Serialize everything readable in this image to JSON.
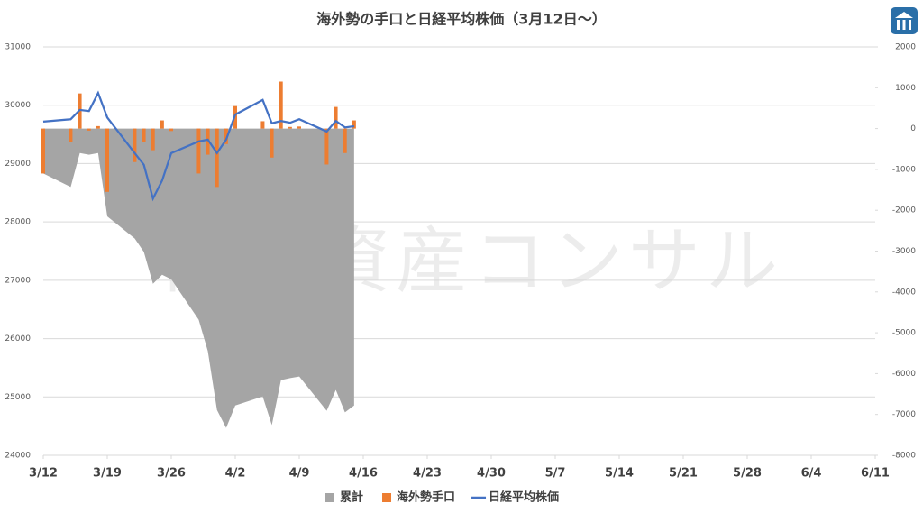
{
  "chart_data": {
    "type": "combo",
    "title": "海外勢の手口と日経平均株価（3月12日～）",
    "watermark": "高田資産コンサル",
    "x": [
      "3/12",
      "3/15",
      "3/16",
      "3/17",
      "3/18",
      "3/19",
      "3/22",
      "3/23",
      "3/24",
      "3/25",
      "3/26",
      "3/29",
      "3/30",
      "3/31",
      "4/1",
      "4/2",
      "4/5",
      "4/6",
      "4/7",
      "4/8",
      "4/9",
      "4/12",
      "4/13",
      "4/14",
      "4/15"
    ],
    "xlim": [
      "3/12",
      "6/11"
    ],
    "xticks": [
      "3/12",
      "3/19",
      "3/26",
      "4/2",
      "4/9",
      "4/16",
      "4/23",
      "4/30",
      "5/7",
      "5/14",
      "5/21",
      "5/28",
      "6/4",
      "6/11"
    ],
    "ylim": [
      24000,
      31000
    ],
    "yticks": [
      24000,
      25000,
      26000,
      27000,
      28000,
      29000,
      30000,
      31000
    ],
    "y2lim": [
      -8000,
      2000
    ],
    "y2ticks": [
      -8000,
      -7000,
      -6000,
      -5000,
      -4000,
      -3000,
      -2000,
      -1000,
      0,
      1000,
      2000
    ],
    "grid": true,
    "legend": "bottom",
    "series": [
      {
        "name": "累計",
        "type": "area",
        "axis": "y2",
        "color": "#a5a5a5",
        "values": [
          -1100,
          -1430,
          -600,
          -640,
          -600,
          -2150,
          -2690,
          -3020,
          -3800,
          -3580,
          -3690,
          -4680,
          -5450,
          -6890,
          -7330,
          -6780,
          -6560,
          -7260,
          -6160,
          -6110,
          -6070,
          -6910,
          -6400,
          -6950,
          -6780
        ]
      },
      {
        "name": "海外勢手口",
        "type": "bar",
        "axis": "y2",
        "color": "#ed7d31",
        "values": [
          -1100,
          -330,
          860,
          -50,
          60,
          -1550,
          -820,
          -330,
          -530,
          200,
          -60,
          -1100,
          -640,
          -1430,
          -380,
          550,
          180,
          -710,
          1150,
          40,
          50,
          -880,
          530,
          -600,
          200
        ]
      },
      {
        "name": "日経平均株価",
        "type": "line",
        "color": "#4472c4",
        "values": [
          29720,
          29760,
          29920,
          29900,
          30210,
          29790,
          29180,
          28980,
          28400,
          28710,
          29180,
          29380,
          29410,
          29180,
          29410,
          29840,
          30090,
          29690,
          29730,
          29700,
          29760,
          29550,
          29730,
          29620,
          29640
        ]
      }
    ]
  }
}
